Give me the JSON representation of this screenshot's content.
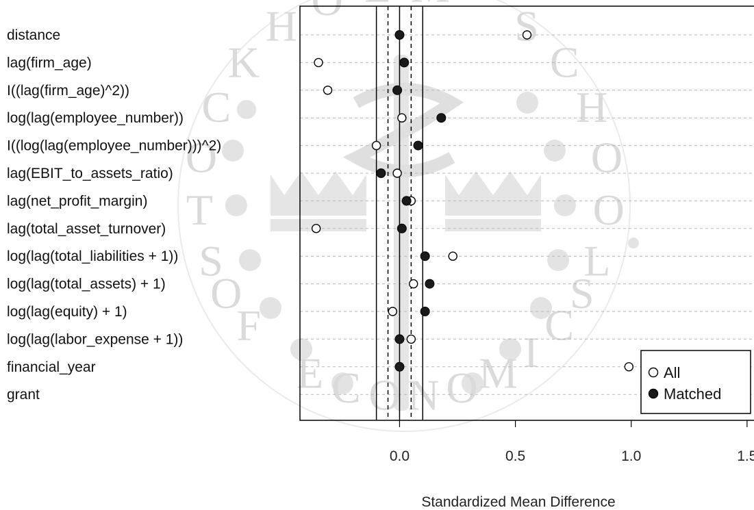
{
  "chart_data": {
    "type": "scatter",
    "title": "",
    "xlabel": "Standardized Mean Difference",
    "ylabel": "",
    "xlim": [
      -0.43,
      1.53
    ],
    "xticks": [
      0.0,
      0.5,
      1.0,
      1.5
    ],
    "xtick_labels": [
      "0.0",
      "0.5",
      "1.0",
      "1.5"
    ],
    "reference_lines": {
      "solid": [
        -0.1,
        0.0,
        0.1
      ],
      "dashed": [
        -0.05,
        0.05
      ]
    },
    "grid": "horizontal dashed",
    "legend_position": "bottom-right",
    "categories": [
      "distance",
      "lag(firm_age)",
      "I((lag(firm_age)^2))",
      "log(lag(employee_number))",
      "I((log(lag(employee_number)))^2)",
      "lag(EBIT_to_assets_ratio)",
      "lag(net_profit_margin)",
      "lag(total_asset_turnover)",
      "log(lag(total_liabilities + 1))",
      "log(lag(total_assets) + 1)",
      "log(lag(equity) + 1)",
      "log(lag(labor_expense + 1))",
      "financial_year",
      "grant"
    ],
    "series": [
      {
        "name": "All",
        "marker": "open-circle",
        "color": "#000000",
        "values": [
          0.55,
          -0.35,
          -0.31,
          0.01,
          -0.1,
          -0.01,
          0.05,
          -0.36,
          0.23,
          0.06,
          -0.03,
          0.05,
          0.99,
          null
        ]
      },
      {
        "name": "Matched",
        "marker": "filled-circle",
        "color": "#1a1a1a",
        "values": [
          0.0,
          0.02,
          -0.01,
          0.18,
          0.08,
          -0.08,
          0.03,
          0.01,
          0.11,
          0.13,
          0.11,
          0.0,
          0.0,
          null
        ]
      }
    ]
  },
  "watermark": {
    "text_top": "STOCKHOLM SCHOOL",
    "text_bottom": "OF ECONOMICS",
    "color": "#d9d9d9"
  }
}
